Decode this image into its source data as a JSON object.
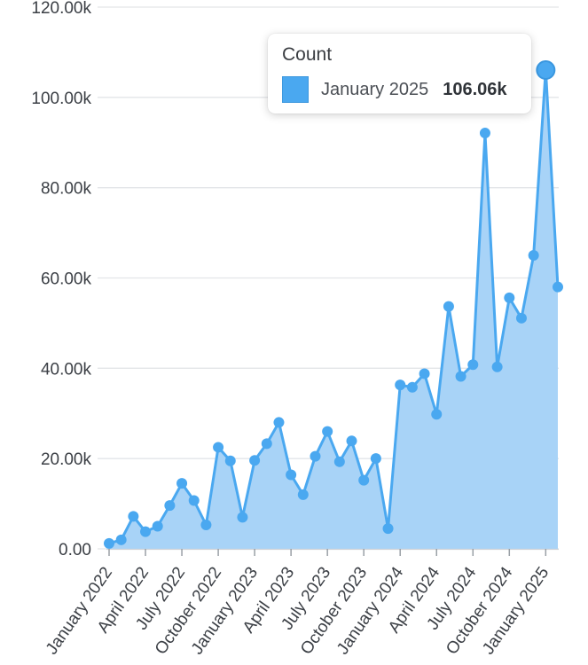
{
  "chart_data": {
    "type": "area",
    "x": [
      "January 2022",
      "February 2022",
      "March 2022",
      "April 2022",
      "May 2022",
      "June 2022",
      "July 2022",
      "August 2022",
      "September 2022",
      "October 2022",
      "November 2022",
      "December 2022",
      "January 2023",
      "February 2023",
      "March 2023",
      "April 2023",
      "May 2023",
      "June 2023",
      "July 2023",
      "August 2023",
      "September 2023",
      "October 2023",
      "November 2023",
      "December 2023",
      "January 2024",
      "February 2024",
      "March 2024",
      "April 2024",
      "May 2024",
      "June 2024",
      "July 2024",
      "August 2024",
      "September 2024",
      "October 2024",
      "November 2024",
      "December 2024",
      "January 2025",
      "February 2025"
    ],
    "series": [
      {
        "name": "Count",
        "values": [
          1200,
          2000,
          7200,
          3800,
          5000,
          9600,
          14500,
          10700,
          5300,
          22500,
          19500,
          7000,
          19600,
          23300,
          28000,
          16400,
          12000,
          20500,
          26000,
          19300,
          23900,
          15200,
          20000,
          4500,
          36300,
          35800,
          38800,
          29800,
          53700,
          38200,
          40800,
          92100,
          40300,
          55600,
          51100,
          65000,
          106060,
          58000
        ]
      }
    ],
    "x_tick_labels": [
      "January 2022",
      "April 2022",
      "July 2022",
      "October 2022",
      "January 2023",
      "April 2023",
      "July 2023",
      "October 2023",
      "January 2024",
      "April 2024",
      "July 2024",
      "October 2024",
      "January 2025"
    ],
    "y_tick_labels": [
      "0.00",
      "20.00k",
      "40.00k",
      "60.00k",
      "80.00k",
      "100.00k",
      "120.00k"
    ],
    "ylim": [
      0,
      120000
    ],
    "grid": true,
    "highlighted_index": 36,
    "colors": {
      "line": "#4aa8f0",
      "fill": "#a8d3f7",
      "grid": "#e3e5e8"
    }
  },
  "tooltip": {
    "title": "Count",
    "label": "January 2025",
    "value": "106.06k"
  }
}
